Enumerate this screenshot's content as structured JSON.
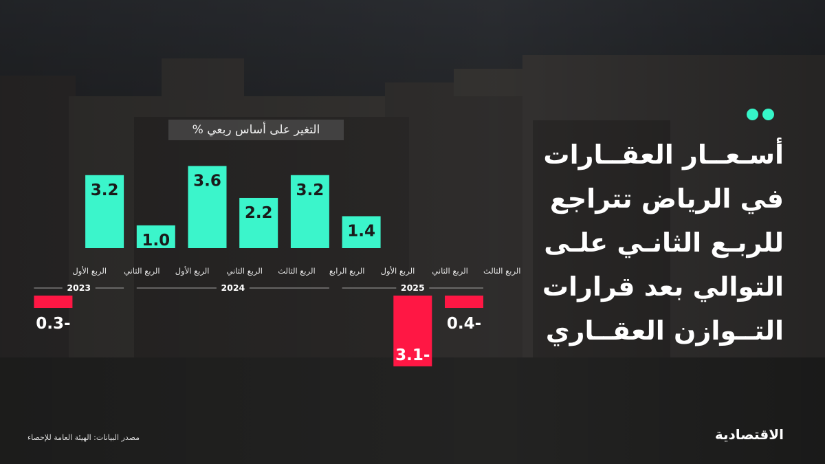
{
  "headline": {
    "lines": [
      "أسـعــار العقــارات",
      "في الرياض تتراجع",
      "للربـع الثانـي علـى",
      "التوالي بعد قرارات",
      "التــوازن العقــاري"
    ]
  },
  "chart_subtitle": "التغير على أساس ربعي %",
  "source": "مصدر البيانات: الهيئة العامة للإحصاء",
  "logo": "الاقتصادية",
  "colors": {
    "positive": "#3bf5cb",
    "negative": "#ff1744",
    "accent_dots": "#36f5c8"
  },
  "icons": [
    "accent-dots-icon"
  ],
  "chart_data": {
    "type": "bar",
    "categories": [
      "الربع الأول",
      "الربع الثاني",
      "الربع الأول",
      "الربع الثاني",
      "الربع الثالث",
      "الربع الرابع",
      "الربع الأول",
      "الربع الثاني",
      "الربع الثالث"
    ],
    "years": [
      {
        "label": "2023",
        "from": 0,
        "to": 1
      },
      {
        "label": "2024",
        "from": 2,
        "to": 5
      },
      {
        "label": "2025",
        "from": 6,
        "to": 8
      }
    ],
    "values": [
      -0.3,
      3.2,
      1.0,
      3.6,
      2.2,
      3.2,
      1.4,
      -3.1,
      -0.4
    ],
    "value_labels": [
      "0.3-",
      "3.2",
      "1.0",
      "3.6",
      "2.2",
      "3.2",
      "1.4",
      "3.1-",
      "0.4-"
    ],
    "title": "التغير على أساس ربعي %",
    "xlabel": "",
    "ylabel": "",
    "ylim": [
      -3.1,
      3.6
    ],
    "grid": false,
    "legend": "none"
  }
}
